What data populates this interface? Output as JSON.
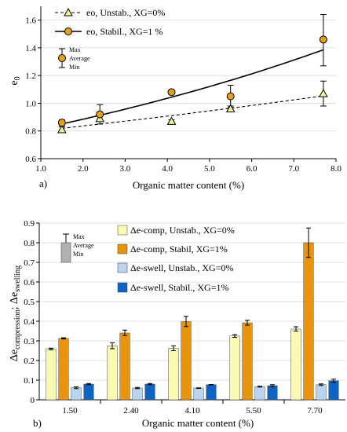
{
  "chart_data": [
    {
      "panel_label": "a)",
      "type": "scatter",
      "xlabel": "Organic matter content (%)",
      "ylabel": "e",
      "ylabel_sub": "0",
      "xlim": [
        1.0,
        8.0
      ],
      "ylim": [
        0.6,
        1.7
      ],
      "xticks": [
        "1.0",
        "2.0",
        "3.0",
        "4.0",
        "5.0",
        "6.0",
        "7.0",
        "8.0"
      ],
      "yticks": [
        "0.6",
        "0.8",
        "1.0",
        "1.2",
        "1.4",
        "1.6"
      ],
      "x": [
        1.5,
        2.4,
        4.1,
        5.5,
        7.7
      ],
      "series": [
        {
          "name": "eo, Unstab., XG=0%",
          "marker": "triangle",
          "color": "#f5f39a",
          "trendline": "dashed",
          "values": [
            0.81,
            0.89,
            0.87,
            0.96,
            1.07
          ],
          "min": [
            0.79,
            0.87,
            0.86,
            0.94,
            0.98
          ],
          "max": [
            0.83,
            0.91,
            0.88,
            0.98,
            1.16
          ]
        },
        {
          "name": "eo, Stabil., XG=1 %",
          "marker": "circle",
          "color": "#e3a21a",
          "trendline": "solid",
          "values": [
            0.86,
            0.92,
            1.08,
            1.05,
            1.46
          ],
          "min": [
            0.84,
            0.85,
            1.07,
            0.97,
            1.27
          ],
          "max": [
            0.88,
            0.99,
            1.09,
            1.13,
            1.64
          ]
        }
      ],
      "error_legend": [
        "Max",
        "Average",
        "Min"
      ]
    },
    {
      "panel_label": "b)",
      "type": "bar",
      "xlabel": "Organic matter content (%)",
      "ylabel_parts": [
        "Δe",
        "compression",
        "; Δe",
        "swelling"
      ],
      "categories": [
        "1.50",
        "2.40",
        "4.10",
        "5.50",
        "7.70"
      ],
      "ylim": [
        0,
        0.9
      ],
      "yticks": [
        "0",
        "0.1",
        "0.2",
        "0.3",
        "0.4",
        "0.5",
        "0.6",
        "0.7",
        "0.8",
        "0.9"
      ],
      "series": [
        {
          "name": "Δe-comp, Unstab., XG=0%",
          "color": "#fafab0",
          "values": [
            0.26,
            0.275,
            0.262,
            0.325,
            0.36
          ],
          "min": [
            0.255,
            0.26,
            0.25,
            0.318,
            0.35
          ],
          "max": [
            0.263,
            0.29,
            0.275,
            0.332,
            0.372
          ]
        },
        {
          "name": "Δe-comp, Stabil, XG=1%",
          "color": "#e8940c",
          "values": [
            0.313,
            0.34,
            0.398,
            0.392,
            0.8
          ],
          "min": [
            0.31,
            0.327,
            0.373,
            0.38,
            0.725
          ],
          "max": [
            0.316,
            0.355,
            0.425,
            0.405,
            0.875
          ]
        },
        {
          "name": "Δe-swell, Unstab., XG=0%",
          "color": "#b9d4ee",
          "values": [
            0.062,
            0.06,
            0.06,
            0.067,
            0.077
          ],
          "min": [
            0.057,
            0.057,
            0.058,
            0.065,
            0.073
          ],
          "max": [
            0.066,
            0.063,
            0.061,
            0.069,
            0.081
          ]
        },
        {
          "name": "Δe-swell, Stabil., XG=1%",
          "color": "#0d64c2",
          "values": [
            0.08,
            0.08,
            0.077,
            0.072,
            0.097
          ],
          "min": [
            0.077,
            0.077,
            0.076,
            0.066,
            0.089
          ],
          "max": [
            0.083,
            0.083,
            0.078,
            0.077,
            0.105
          ]
        }
      ],
      "error_legend": [
        "Max",
        "Average",
        "Min"
      ]
    }
  ]
}
